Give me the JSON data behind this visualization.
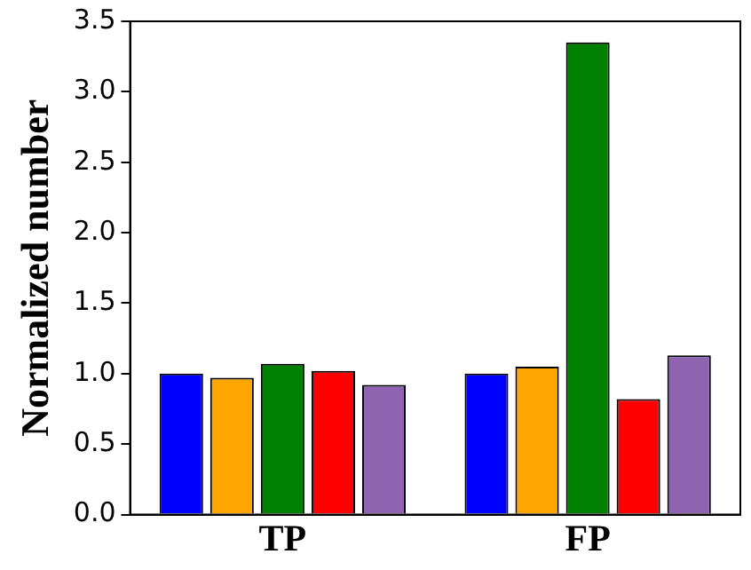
{
  "chart_data": {
    "type": "bar",
    "ylabel": "Normalized number",
    "categories": [
      "TP",
      "FP"
    ],
    "series": [
      {
        "color": "#0000ff",
        "values": [
          1.0,
          1.0
        ]
      },
      {
        "color": "#ffa500",
        "values": [
          0.97,
          1.05
        ]
      },
      {
        "color": "#008000",
        "values": [
          1.07,
          3.35
        ]
      },
      {
        "color": "#ff0000",
        "values": [
          1.02,
          0.82
        ]
      },
      {
        "color": "#8e63b0",
        "values": [
          0.92,
          1.13
        ]
      }
    ],
    "ylim": [
      0,
      3.5
    ],
    "yticks": [
      {
        "value": 0,
        "label": "0.0"
      },
      0.5,
      {
        "value": 1,
        "label": "1.0"
      },
      1.5,
      {
        "value": 2,
        "label": "2.0"
      },
      2.5,
      {
        "value": 3,
        "label": "3.0"
      },
      3.5
    ],
    "grid": false,
    "legend": false
  }
}
